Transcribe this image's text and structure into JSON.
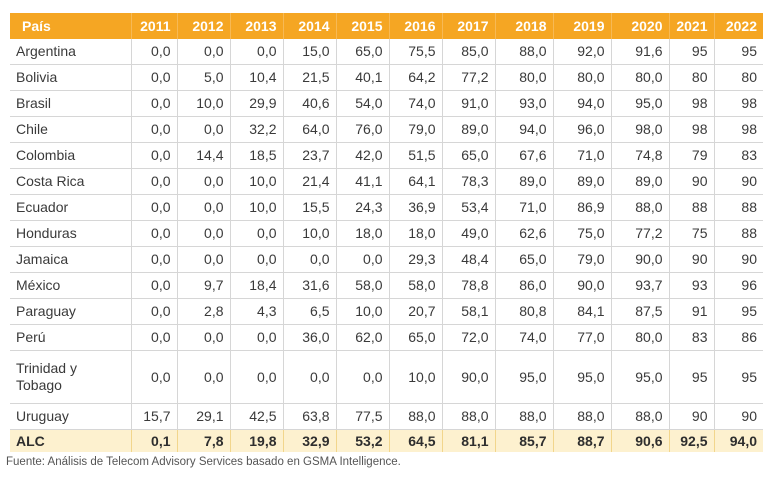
{
  "table": {
    "country_header": "País",
    "years": [
      "2011",
      "2012",
      "2013",
      "2014",
      "2015",
      "2016",
      "2017",
      "2018",
      "2019",
      "2020",
      "2021",
      "2022"
    ],
    "rows": [
      {
        "country": "Argentina",
        "values": [
          "0,0",
          "0,0",
          "0,0",
          "15,0",
          "65,0",
          "75,5",
          "85,0",
          "88,0",
          "92,0",
          "91,6",
          "95",
          "95"
        ]
      },
      {
        "country": "Bolivia",
        "values": [
          "0,0",
          "5,0",
          "10,4",
          "21,5",
          "40,1",
          "64,2",
          "77,2",
          "80,0",
          "80,0",
          "80,0",
          "80",
          "80"
        ]
      },
      {
        "country": "Brasil",
        "values": [
          "0,0",
          "10,0",
          "29,9",
          "40,6",
          "54,0",
          "74,0",
          "91,0",
          "93,0",
          "94,0",
          "95,0",
          "98",
          "98"
        ]
      },
      {
        "country": "Chile",
        "values": [
          "0,0",
          "0,0",
          "32,2",
          "64,0",
          "76,0",
          "79,0",
          "89,0",
          "94,0",
          "96,0",
          "98,0",
          "98",
          "98"
        ]
      },
      {
        "country": "Colombia",
        "values": [
          "0,0",
          "14,4",
          "18,5",
          "23,7",
          "42,0",
          "51,5",
          "65,0",
          "67,6",
          "71,0",
          "74,8",
          "79",
          "83"
        ]
      },
      {
        "country": "Costa Rica",
        "values": [
          "0,0",
          "0,0",
          "10,0",
          "21,4",
          "41,1",
          "64,1",
          "78,3",
          "89,0",
          "89,0",
          "89,0",
          "90",
          "90"
        ]
      },
      {
        "country": "Ecuador",
        "values": [
          "0,0",
          "0,0",
          "10,0",
          "15,5",
          "24,3",
          "36,9",
          "53,4",
          "71,0",
          "86,9",
          "88,0",
          "88",
          "88"
        ]
      },
      {
        "country": "Honduras",
        "values": [
          "0,0",
          "0,0",
          "0,0",
          "10,0",
          "18,0",
          "18,0",
          "49,0",
          "62,6",
          "75,0",
          "77,2",
          "75",
          "88"
        ]
      },
      {
        "country": "Jamaica",
        "values": [
          "0,0",
          "0,0",
          "0,0",
          "0,0",
          "0,0",
          "29,3",
          "48,4",
          "65,0",
          "79,0",
          "90,0",
          "90",
          "90"
        ]
      },
      {
        "country": "México",
        "values": [
          "0,0",
          "9,7",
          "18,4",
          "31,6",
          "58,0",
          "58,0",
          "78,8",
          "86,0",
          "90,0",
          "93,7",
          "93",
          "96"
        ]
      },
      {
        "country": "Paraguay",
        "values": [
          "0,0",
          "2,8",
          "4,3",
          "6,5",
          "10,0",
          "20,7",
          "58,1",
          "80,8",
          "84,1",
          "87,5",
          "91",
          "95"
        ]
      },
      {
        "country": "Perú",
        "values": [
          "0,0",
          "0,0",
          "0,0",
          "36,0",
          "62,0",
          "65,0",
          "72,0",
          "74,0",
          "77,0",
          "80,0",
          "83",
          "86"
        ]
      },
      {
        "country": "Trinidad y Tobago",
        "values": [
          "0,0",
          "0,0",
          "0,0",
          "0,0",
          "0,0",
          "10,0",
          "90,0",
          "95,0",
          "95,0",
          "95,0",
          "95",
          "95"
        ],
        "tall": true
      },
      {
        "country": "Uruguay",
        "values": [
          "15,7",
          "29,1",
          "42,5",
          "63,8",
          "77,5",
          "88,0",
          "88,0",
          "88,0",
          "88,0",
          "88,0",
          "90",
          "90"
        ]
      }
    ],
    "total": {
      "country": "ALC",
      "values": [
        "0,1",
        "7,8",
        "19,8",
        "32,9",
        "53,2",
        "64,5",
        "81,1",
        "85,7",
        "88,7",
        "90,6",
        "92,5",
        "94,0"
      ]
    }
  },
  "source": "Fuente: Análisis de Telecom Advisory Services basado en GSMA Intelligence.",
  "colors": {
    "header_bg": "#f5a623",
    "total_bg": "#fdf1cf",
    "grid": "#d6d6d6"
  }
}
